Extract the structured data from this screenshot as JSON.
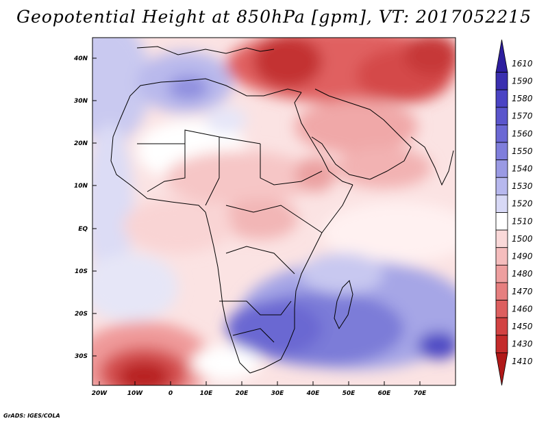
{
  "title": "Geopotential Height at 850hPa [gpm], VT: 2017052215",
  "footer": "GrADS: IGES/COLA",
  "map": {
    "variable": "Geopotential Height",
    "level": "850hPa",
    "units": "gpm",
    "valid_time": "2017052215",
    "lat_labels": [
      "40N",
      "30N",
      "20N",
      "10N",
      "EQ",
      "10S",
      "20S",
      "30S"
    ],
    "lon_labels": [
      "20W",
      "10W",
      "0",
      "10E",
      "20E",
      "30E",
      "40E",
      "50E",
      "60E",
      "70E"
    ]
  },
  "colorbar": {
    "labels": [
      "1610",
      "1590",
      "1580",
      "1570",
      "1560",
      "1550",
      "1540",
      "1530",
      "1520",
      "1510",
      "1500",
      "1490",
      "1480",
      "1470",
      "1460",
      "1450",
      "1430",
      "1410"
    ],
    "colors": [
      "#2d1e9e",
      "#3a2fb0",
      "#4a43c4",
      "#5a55cc",
      "#6b68d4",
      "#7f7edc",
      "#9a9ae4",
      "#b7b8ee",
      "#d8d9f6",
      "#ffffff",
      "#fad9d9",
      "#f5bdbd",
      "#ee9f9f",
      "#e67f7f",
      "#dd5f5f",
      "#d24242",
      "#c42b2b",
      "#b01818"
    ]
  }
}
